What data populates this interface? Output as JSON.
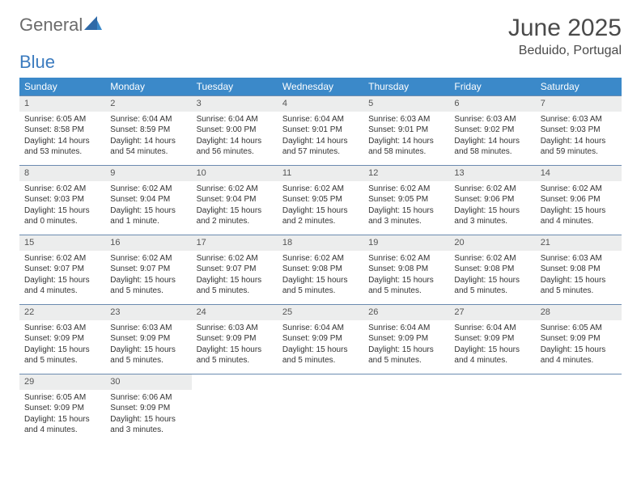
{
  "logo": {
    "word1": "General",
    "word2": "Blue"
  },
  "title": "June 2025",
  "location": "Beduido, Portugal",
  "colors": {
    "header_bg": "#3b89c9",
    "header_text": "#ffffff",
    "daynum_bg": "#eceded",
    "row_border": "#6b8bb0",
    "logo_grey": "#6b6b6b",
    "logo_blue": "#3b7bbf"
  },
  "typography": {
    "title_fontsize": 30,
    "location_fontsize": 16,
    "header_fontsize": 12,
    "cell_fontsize": 10
  },
  "weekdays": [
    "Sunday",
    "Monday",
    "Tuesday",
    "Wednesday",
    "Thursday",
    "Friday",
    "Saturday"
  ],
  "weeks": [
    [
      {
        "n": "1",
        "sunrise": "Sunrise: 6:05 AM",
        "sunset": "Sunset: 8:58 PM",
        "daylight": "Daylight: 14 hours and 53 minutes."
      },
      {
        "n": "2",
        "sunrise": "Sunrise: 6:04 AM",
        "sunset": "Sunset: 8:59 PM",
        "daylight": "Daylight: 14 hours and 54 minutes."
      },
      {
        "n": "3",
        "sunrise": "Sunrise: 6:04 AM",
        "sunset": "Sunset: 9:00 PM",
        "daylight": "Daylight: 14 hours and 56 minutes."
      },
      {
        "n": "4",
        "sunrise": "Sunrise: 6:04 AM",
        "sunset": "Sunset: 9:01 PM",
        "daylight": "Daylight: 14 hours and 57 minutes."
      },
      {
        "n": "5",
        "sunrise": "Sunrise: 6:03 AM",
        "sunset": "Sunset: 9:01 PM",
        "daylight": "Daylight: 14 hours and 58 minutes."
      },
      {
        "n": "6",
        "sunrise": "Sunrise: 6:03 AM",
        "sunset": "Sunset: 9:02 PM",
        "daylight": "Daylight: 14 hours and 58 minutes."
      },
      {
        "n": "7",
        "sunrise": "Sunrise: 6:03 AM",
        "sunset": "Sunset: 9:03 PM",
        "daylight": "Daylight: 14 hours and 59 minutes."
      }
    ],
    [
      {
        "n": "8",
        "sunrise": "Sunrise: 6:02 AM",
        "sunset": "Sunset: 9:03 PM",
        "daylight": "Daylight: 15 hours and 0 minutes."
      },
      {
        "n": "9",
        "sunrise": "Sunrise: 6:02 AM",
        "sunset": "Sunset: 9:04 PM",
        "daylight": "Daylight: 15 hours and 1 minute."
      },
      {
        "n": "10",
        "sunrise": "Sunrise: 6:02 AM",
        "sunset": "Sunset: 9:04 PM",
        "daylight": "Daylight: 15 hours and 2 minutes."
      },
      {
        "n": "11",
        "sunrise": "Sunrise: 6:02 AM",
        "sunset": "Sunset: 9:05 PM",
        "daylight": "Daylight: 15 hours and 2 minutes."
      },
      {
        "n": "12",
        "sunrise": "Sunrise: 6:02 AM",
        "sunset": "Sunset: 9:05 PM",
        "daylight": "Daylight: 15 hours and 3 minutes."
      },
      {
        "n": "13",
        "sunrise": "Sunrise: 6:02 AM",
        "sunset": "Sunset: 9:06 PM",
        "daylight": "Daylight: 15 hours and 3 minutes."
      },
      {
        "n": "14",
        "sunrise": "Sunrise: 6:02 AM",
        "sunset": "Sunset: 9:06 PM",
        "daylight": "Daylight: 15 hours and 4 minutes."
      }
    ],
    [
      {
        "n": "15",
        "sunrise": "Sunrise: 6:02 AM",
        "sunset": "Sunset: 9:07 PM",
        "daylight": "Daylight: 15 hours and 4 minutes."
      },
      {
        "n": "16",
        "sunrise": "Sunrise: 6:02 AM",
        "sunset": "Sunset: 9:07 PM",
        "daylight": "Daylight: 15 hours and 5 minutes."
      },
      {
        "n": "17",
        "sunrise": "Sunrise: 6:02 AM",
        "sunset": "Sunset: 9:07 PM",
        "daylight": "Daylight: 15 hours and 5 minutes."
      },
      {
        "n": "18",
        "sunrise": "Sunrise: 6:02 AM",
        "sunset": "Sunset: 9:08 PM",
        "daylight": "Daylight: 15 hours and 5 minutes."
      },
      {
        "n": "19",
        "sunrise": "Sunrise: 6:02 AM",
        "sunset": "Sunset: 9:08 PM",
        "daylight": "Daylight: 15 hours and 5 minutes."
      },
      {
        "n": "20",
        "sunrise": "Sunrise: 6:02 AM",
        "sunset": "Sunset: 9:08 PM",
        "daylight": "Daylight: 15 hours and 5 minutes."
      },
      {
        "n": "21",
        "sunrise": "Sunrise: 6:03 AM",
        "sunset": "Sunset: 9:08 PM",
        "daylight": "Daylight: 15 hours and 5 minutes."
      }
    ],
    [
      {
        "n": "22",
        "sunrise": "Sunrise: 6:03 AM",
        "sunset": "Sunset: 9:09 PM",
        "daylight": "Daylight: 15 hours and 5 minutes."
      },
      {
        "n": "23",
        "sunrise": "Sunrise: 6:03 AM",
        "sunset": "Sunset: 9:09 PM",
        "daylight": "Daylight: 15 hours and 5 minutes."
      },
      {
        "n": "24",
        "sunrise": "Sunrise: 6:03 AM",
        "sunset": "Sunset: 9:09 PM",
        "daylight": "Daylight: 15 hours and 5 minutes."
      },
      {
        "n": "25",
        "sunrise": "Sunrise: 6:04 AM",
        "sunset": "Sunset: 9:09 PM",
        "daylight": "Daylight: 15 hours and 5 minutes."
      },
      {
        "n": "26",
        "sunrise": "Sunrise: 6:04 AM",
        "sunset": "Sunset: 9:09 PM",
        "daylight": "Daylight: 15 hours and 5 minutes."
      },
      {
        "n": "27",
        "sunrise": "Sunrise: 6:04 AM",
        "sunset": "Sunset: 9:09 PM",
        "daylight": "Daylight: 15 hours and 4 minutes."
      },
      {
        "n": "28",
        "sunrise": "Sunrise: 6:05 AM",
        "sunset": "Sunset: 9:09 PM",
        "daylight": "Daylight: 15 hours and 4 minutes."
      }
    ],
    [
      {
        "n": "29",
        "sunrise": "Sunrise: 6:05 AM",
        "sunset": "Sunset: 9:09 PM",
        "daylight": "Daylight: 15 hours and 4 minutes."
      },
      {
        "n": "30",
        "sunrise": "Sunrise: 6:06 AM",
        "sunset": "Sunset: 9:09 PM",
        "daylight": "Daylight: 15 hours and 3 minutes."
      },
      null,
      null,
      null,
      null,
      null
    ]
  ]
}
